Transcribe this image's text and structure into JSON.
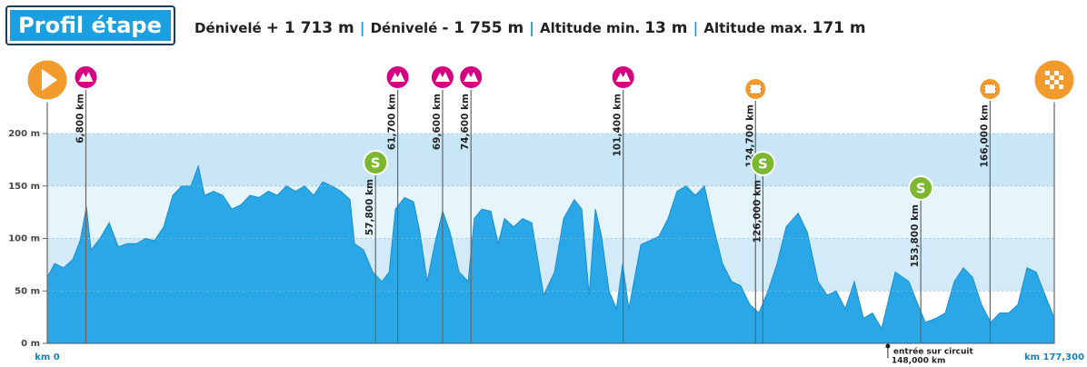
{
  "header": {
    "title": "Profil étape",
    "stats": [
      {
        "label": "Dénivelé",
        "value": "+ 1 713 m"
      },
      {
        "label": "Dénivelé",
        "value": "- 1 755 m"
      },
      {
        "label": "Altitude min.",
        "value": "13 m"
      },
      {
        "label": "Altitude max.",
        "value": "171 m"
      }
    ]
  },
  "chart_data": {
    "type": "area",
    "color": "#2aa7e6",
    "x": [
      0,
      1.3,
      2.9,
      4.5,
      5.8,
      6.9,
      7.7,
      9.3,
      10.9,
      12.5,
      14.1,
      15.7,
      17.3,
      18.9,
      20.5,
      22.1,
      23.7,
      25.3,
      26.6,
      27.7,
      29.3,
      30.9,
      32.5,
      34.1,
      35.7,
      37.3,
      38.9,
      40.5,
      42.1,
      43.7,
      45.3,
      46.9,
      48.5,
      50.1,
      51.7,
      53.3,
      54.1,
      55.7,
      57.3,
      58.9,
      60.2,
      61.3,
      62.9,
      64.5,
      65.6,
      66.9,
      68.2,
      69.6,
      70.9,
      72.5,
      74.1,
      75.2,
      76.5,
      78.1,
      79.4,
      80.5,
      82.1,
      83.7,
      85.3,
      87.4,
      89.3,
      90.9,
      92.8,
      94.1,
      95.4,
      96.5,
      97.6,
      98.9,
      100.2,
      101.3,
      102.4,
      104.5,
      106.1,
      107.7,
      109.3,
      110.9,
      112.5,
      114.1,
      115.7,
      117.3,
      118.9,
      120.5,
      122.1,
      123.7,
      125.3,
      126.9,
      128.5,
      130.1,
      132.2,
      133.8,
      135.7,
      137.3,
      138.9,
      140.5,
      142.1,
      143.7,
      145.3,
      146.9,
      149.3,
      151.7,
      153.3,
      154.6,
      156.5,
      158.1,
      159.7,
      161.3,
      162.9,
      164.5,
      166.1,
      167.7,
      169.3,
      170.9,
      172.5,
      174.1,
      175.7,
      177.3
    ],
    "values": [
      63,
      76,
      72,
      80,
      98,
      130,
      89,
      100,
      115,
      92,
      95,
      95,
      100,
      98,
      111,
      141,
      150,
      150,
      169,
      141,
      145,
      141,
      128,
      132,
      141,
      139,
      145,
      141,
      150,
      145,
      150,
      141,
      154,
      150,
      145,
      137,
      95,
      89,
      68,
      59,
      68,
      128,
      139,
      135,
      106,
      59,
      94,
      126,
      106,
      68,
      59,
      119,
      128,
      126,
      95,
      119,
      111,
      119,
      115,
      46,
      68,
      119,
      137,
      128,
      46,
      128,
      102,
      50,
      33,
      76,
      33,
      94,
      98,
      102,
      119,
      145,
      150,
      141,
      150,
      111,
      76,
      59,
      55,
      37,
      29,
      50,
      76,
      111,
      124,
      106,
      59,
      46,
      50,
      33,
      59,
      24,
      29,
      14,
      68,
      59,
      37,
      20,
      24,
      29,
      59,
      72,
      63,
      37,
      20,
      29,
      29,
      37,
      72,
      68,
      46,
      24
    ],
    "xlim": [
      0,
      177.3
    ],
    "xticks": [
      {
        "value": 0,
        "label": "km 0"
      },
      {
        "value": 177.3,
        "label": "km 177,300"
      }
    ],
    "ylim": [
      0,
      200
    ],
    "yticks": [
      {
        "value": 0,
        "label": "0 m"
      },
      {
        "value": 50,
        "label": "50 m"
      },
      {
        "value": 100,
        "label": "100 m"
      },
      {
        "value": 150,
        "label": "150 m"
      },
      {
        "value": 200,
        "label": "200 m"
      }
    ],
    "grid": true,
    "markers": [
      {
        "type": "start",
        "km": 0
      },
      {
        "type": "climb",
        "km": 6.8,
        "label": "6,800 km"
      },
      {
        "type": "sprint",
        "km": 57.8,
        "label": "57,800 km"
      },
      {
        "type": "climb",
        "km": 61.7,
        "label": "61,700 km"
      },
      {
        "type": "climb",
        "km": 69.6,
        "label": "69,600 km"
      },
      {
        "type": "climb",
        "km": 74.6,
        "label": "74,600 km"
      },
      {
        "type": "climb",
        "km": 101.4,
        "label": "101,400 km"
      },
      {
        "type": "bonus",
        "km": 124.7,
        "label": "124,700 km"
      },
      {
        "type": "sprint",
        "km": 126,
        "label": "126,000 km"
      },
      {
        "type": "sprint",
        "km": 153.8,
        "label": "153,800 km"
      },
      {
        "type": "bonus",
        "km": 166,
        "label": "166,000 km"
      },
      {
        "type": "finish",
        "km": 177.3
      }
    ],
    "annotations": [
      {
        "km": 148,
        "text": "entrée sur circuit",
        "label": "148,000 km"
      }
    ]
  }
}
